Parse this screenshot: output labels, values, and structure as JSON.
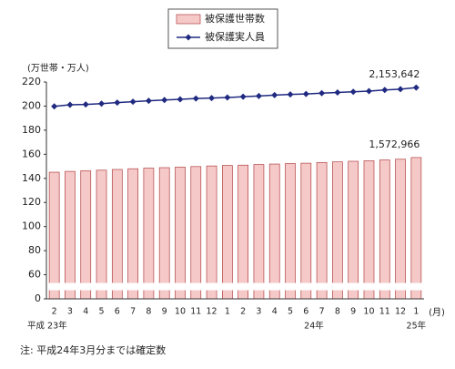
{
  "chart_data": {
    "type": "bar-line",
    "y_unit": "(万世帯・万人)",
    "x_unit": "(月)",
    "note": "注: 平成24年3月分までは確定数",
    "categories": [
      "2",
      "3",
      "4",
      "5",
      "6",
      "7",
      "8",
      "9",
      "10",
      "11",
      "12",
      "1",
      "2",
      "3",
      "4",
      "5",
      "6",
      "7",
      "8",
      "9",
      "10",
      "11",
      "12",
      "1"
    ],
    "x_groups": [
      {
        "label": "平成 23年",
        "start": 0
      },
      {
        "label": "24年",
        "start": 11
      },
      {
        "label": "25年",
        "start": 23
      }
    ],
    "series": [
      {
        "name": "被保護世帯数",
        "type": "bar",
        "color": "#f6c9c9",
        "values": [
          145.1,
          145.8,
          146.3,
          146.8,
          147.4,
          148.0,
          148.5,
          148.9,
          149.3,
          149.8,
          150.3,
          150.7,
          151.0,
          151.5,
          151.9,
          152.3,
          152.6,
          153.2,
          153.7,
          154.2,
          154.6,
          155.3,
          155.9,
          157.2966
        ],
        "value_labels": [
          null,
          null,
          null,
          null,
          null,
          null,
          null,
          null,
          null,
          null,
          null,
          null,
          null,
          null,
          null,
          null,
          null,
          null,
          null,
          null,
          null,
          null,
          null,
          "1,572,966"
        ]
      },
      {
        "name": "被保護実人員",
        "type": "line",
        "color": "#1f2a80",
        "values": [
          199.8,
          201.1,
          201.4,
          202.0,
          202.9,
          203.6,
          204.4,
          205.1,
          205.6,
          206.3,
          206.7,
          207.1,
          207.8,
          208.4,
          209.1,
          209.7,
          210.1,
          210.7,
          211.3,
          211.9,
          212.4,
          213.4,
          214.0,
          215.3642
        ],
        "value_labels": [
          null,
          null,
          null,
          null,
          null,
          null,
          null,
          null,
          null,
          null,
          null,
          null,
          null,
          null,
          null,
          null,
          null,
          null,
          null,
          null,
          null,
          null,
          null,
          "2,153,642"
        ]
      }
    ],
    "ylim": [
      0,
      220
    ],
    "yticks": [
      0,
      60,
      80,
      100,
      120,
      140,
      160,
      180,
      200,
      220
    ]
  }
}
